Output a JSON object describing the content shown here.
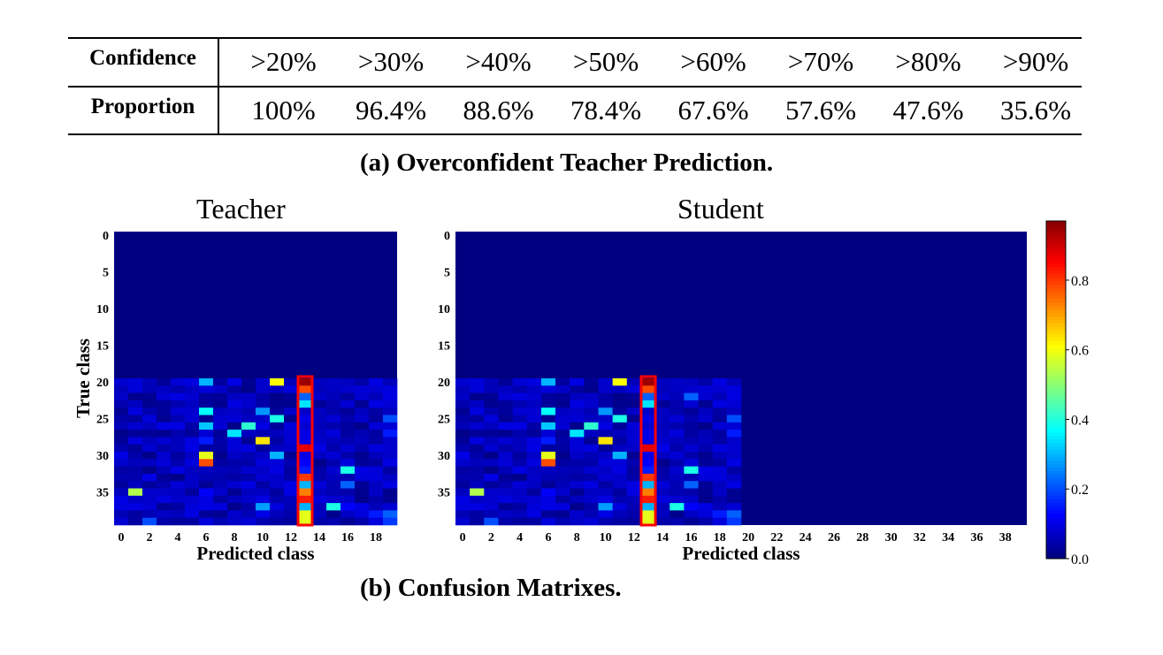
{
  "table": {
    "header_label": "Confidence",
    "header_values": [
      ">20%",
      ">30%",
      ">40%",
      ">50%",
      ">60%",
      ">70%",
      ">80%",
      ">90%"
    ],
    "row_label": "Proportion",
    "row_values": [
      "100%",
      "96.4%",
      "88.6%",
      "78.4%",
      "67.6%",
      "57.6%",
      "47.6%",
      "35.6%"
    ]
  },
  "caption_a": "(a) Overconfident Teacher Prediction.",
  "caption_b": "(b) Confusion Matrixes.",
  "chart_data": [
    {
      "type": "heatmap",
      "title": "Teacher",
      "xlabel": "Predicted class",
      "ylabel": "True class",
      "x_categories": 20,
      "y_categories": 40,
      "xticks": [
        0,
        2,
        4,
        6,
        8,
        10,
        12,
        14,
        16,
        18
      ],
      "yticks": [
        0,
        5,
        10,
        15,
        20,
        25,
        30,
        35
      ],
      "highlight_column": 13,
      "highlight_color": "#ff0000",
      "colormap": "jet",
      "cells": [
        [
          20,
          6,
          0.3
        ],
        [
          20,
          11,
          0.62
        ],
        [
          20,
          13,
          0.97
        ],
        [
          21,
          13,
          0.8
        ],
        [
          22,
          13,
          0.22
        ],
        [
          23,
          13,
          0.35
        ],
        [
          24,
          6,
          0.38
        ],
        [
          24,
          10,
          0.27
        ],
        [
          25,
          11,
          0.4
        ],
        [
          25,
          13,
          0.1
        ],
        [
          25,
          19,
          0.2
        ],
        [
          26,
          6,
          0.32
        ],
        [
          26,
          9,
          0.42
        ],
        [
          26,
          13,
          0.08
        ],
        [
          27,
          8,
          0.35
        ],
        [
          27,
          13,
          0.1
        ],
        [
          27,
          19,
          0.15
        ],
        [
          28,
          10,
          0.65
        ],
        [
          28,
          6,
          0.15
        ],
        [
          28,
          13,
          0.1
        ],
        [
          29,
          13,
          0.9
        ],
        [
          29,
          14,
          0.1
        ],
        [
          30,
          6,
          0.6
        ],
        [
          30,
          11,
          0.3
        ],
        [
          30,
          13,
          0.1
        ],
        [
          31,
          6,
          0.8
        ],
        [
          31,
          13,
          0.12
        ],
        [
          32,
          13,
          0.15
        ],
        [
          32,
          16,
          0.4
        ],
        [
          33,
          13,
          0.82
        ],
        [
          33,
          2,
          0.1
        ],
        [
          34,
          13,
          0.3
        ],
        [
          34,
          16,
          0.22
        ],
        [
          35,
          1,
          0.55
        ],
        [
          35,
          13,
          0.75
        ],
        [
          35,
          6,
          0.12
        ],
        [
          36,
          13,
          0.85
        ],
        [
          37,
          10,
          0.28
        ],
        [
          37,
          13,
          0.3
        ],
        [
          37,
          15,
          0.4
        ],
        [
          37,
          16,
          0.12
        ],
        [
          38,
          13,
          0.6
        ],
        [
          38,
          19,
          0.22
        ],
        [
          38,
          18,
          0.15
        ],
        [
          39,
          2,
          0.2
        ],
        [
          39,
          13,
          0.6
        ],
        [
          39,
          19,
          0.18
        ]
      ]
    },
    {
      "type": "heatmap",
      "title": "Student",
      "xlabel": "Predicted class",
      "ylabel": "",
      "x_categories": 40,
      "y_categories": 40,
      "xticks": [
        0,
        2,
        4,
        6,
        8,
        10,
        12,
        14,
        16,
        18,
        20,
        22,
        24,
        26,
        28,
        30,
        32,
        34,
        36,
        38
      ],
      "yticks": [
        0,
        5,
        10,
        15,
        20,
        25,
        30,
        35
      ],
      "highlight_column": 13,
      "highlight_color": "#ff0000",
      "colormap": "jet",
      "cells": [
        [
          20,
          6,
          0.3
        ],
        [
          20,
          11,
          0.62
        ],
        [
          20,
          13,
          0.97
        ],
        [
          21,
          13,
          0.8
        ],
        [
          22,
          13,
          0.22
        ],
        [
          22,
          16,
          0.22
        ],
        [
          23,
          13,
          0.35
        ],
        [
          24,
          6,
          0.38
        ],
        [
          24,
          10,
          0.27
        ],
        [
          25,
          11,
          0.4
        ],
        [
          25,
          13,
          0.1
        ],
        [
          25,
          19,
          0.2
        ],
        [
          26,
          6,
          0.32
        ],
        [
          26,
          9,
          0.42
        ],
        [
          26,
          13,
          0.08
        ],
        [
          27,
          8,
          0.35
        ],
        [
          27,
          13,
          0.1
        ],
        [
          27,
          19,
          0.15
        ],
        [
          28,
          10,
          0.65
        ],
        [
          28,
          6,
          0.15
        ],
        [
          28,
          13,
          0.1
        ],
        [
          29,
          13,
          0.9
        ],
        [
          29,
          14,
          0.1
        ],
        [
          30,
          6,
          0.6
        ],
        [
          30,
          11,
          0.3
        ],
        [
          30,
          13,
          0.1
        ],
        [
          31,
          6,
          0.8
        ],
        [
          31,
          13,
          0.12
        ],
        [
          32,
          13,
          0.15
        ],
        [
          32,
          16,
          0.4
        ],
        [
          33,
          13,
          0.82
        ],
        [
          33,
          2,
          0.1
        ],
        [
          34,
          13,
          0.3
        ],
        [
          34,
          16,
          0.22
        ],
        [
          35,
          1,
          0.55
        ],
        [
          35,
          13,
          0.75
        ],
        [
          35,
          6,
          0.12
        ],
        [
          36,
          13,
          0.85
        ],
        [
          37,
          10,
          0.28
        ],
        [
          37,
          13,
          0.3
        ],
        [
          37,
          15,
          0.4
        ],
        [
          37,
          16,
          0.12
        ],
        [
          38,
          13,
          0.6
        ],
        [
          38,
          19,
          0.22
        ],
        [
          38,
          18,
          0.15
        ],
        [
          39,
          2,
          0.2
        ],
        [
          39,
          13,
          0.6
        ],
        [
          39,
          19,
          0.18
        ]
      ]
    }
  ],
  "colorbar": {
    "ticks": [
      "0.0",
      "0.2",
      "0.4",
      "0.6",
      "0.8"
    ],
    "tick_values": [
      0.0,
      0.2,
      0.4,
      0.6,
      0.8
    ],
    "max": 0.97
  }
}
